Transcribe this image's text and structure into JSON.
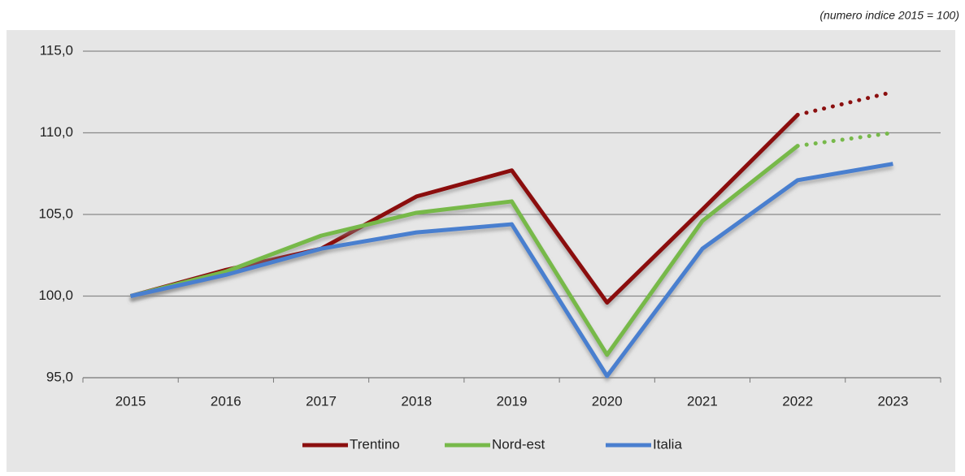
{
  "chart_data": {
    "type": "line",
    "subtitle": "(numero indice 2015 = 100)",
    "categories": [
      "2015",
      "2016",
      "2017",
      "2018",
      "2019",
      "2020",
      "2021",
      "2022",
      "2023"
    ],
    "series": [
      {
        "name": "Trentino",
        "color": "#8b0f0f",
        "dotted_last": true,
        "values": [
          100.0,
          101.6,
          102.9,
          106.1,
          107.7,
          99.6,
          105.3,
          111.1,
          112.5
        ]
      },
      {
        "name": "Nord-est",
        "color": "#77b94a",
        "dotted_last": true,
        "values": [
          100.0,
          101.5,
          103.7,
          105.1,
          105.8,
          96.4,
          104.6,
          109.2,
          110.0
        ]
      },
      {
        "name": "Italia",
        "color": "#4a7fcf",
        "dotted_last": false,
        "values": [
          100.0,
          101.3,
          102.9,
          103.9,
          104.4,
          95.1,
          102.9,
          107.1,
          108.1
        ]
      }
    ],
    "ylim": [
      95,
      115
    ],
    "yticks": [
      {
        "value": 95,
        "label": "95,0"
      },
      {
        "value": 100,
        "label": "100,0"
      },
      {
        "value": 105,
        "label": "105,0"
      },
      {
        "value": 110,
        "label": "110,0"
      },
      {
        "value": 115,
        "label": "115,0"
      }
    ],
    "grid": true,
    "legend": "bottom"
  }
}
